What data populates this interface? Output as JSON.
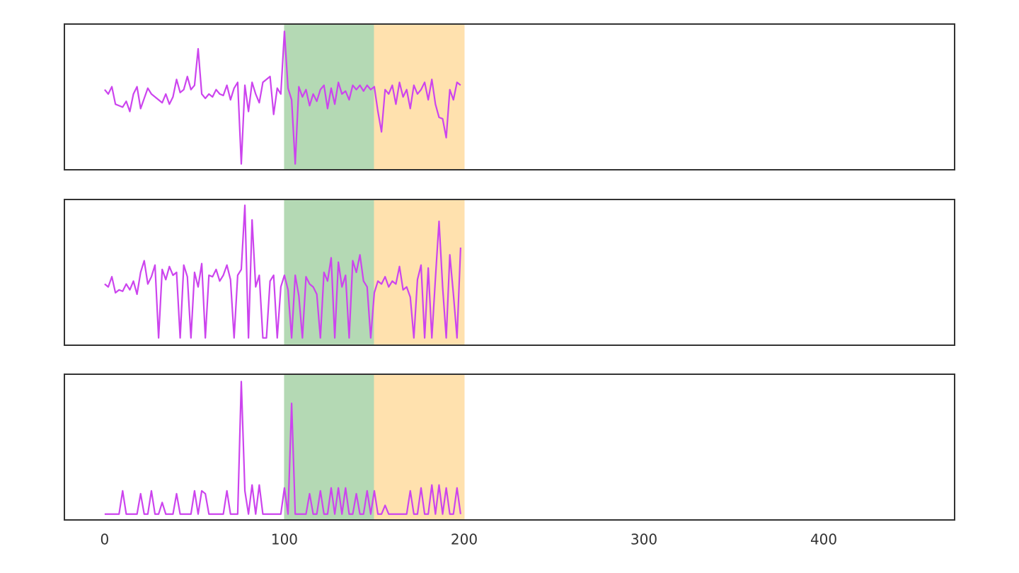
{
  "chart_data": [
    {
      "type": "line",
      "color": "#cc44ee",
      "xlim": [
        -22.4,
        472.8
      ],
      "ylim": [
        0,
        100
      ],
      "spans": [
        {
          "start": 100,
          "end": 150,
          "color": "#b4d9b4"
        },
        {
          "start": 150,
          "end": 200,
          "color": "#ffe1ae"
        }
      ],
      "x": [
        0,
        2,
        4,
        6,
        8,
        10,
        12,
        14,
        16,
        18,
        20,
        22,
        24,
        26,
        28,
        30,
        32,
        34,
        36,
        38,
        40,
        42,
        44,
        46,
        48,
        50,
        52,
        54,
        56,
        58,
        60,
        62,
        64,
        66,
        68,
        70,
        72,
        74,
        76,
        78,
        80,
        82,
        84,
        86,
        88,
        90,
        92,
        94,
        96,
        98,
        100,
        102,
        104,
        106,
        108,
        110,
        112,
        114,
        116,
        118,
        120,
        122,
        124,
        126,
        128,
        130,
        132,
        134,
        136,
        138,
        140,
        142,
        144,
        146,
        148,
        150,
        152,
        154,
        156,
        158,
        160,
        162,
        164,
        166,
        168,
        170,
        172,
        174,
        176,
        178,
        180,
        182,
        184,
        186,
        188,
        190,
        192,
        194,
        196,
        198
      ],
      "values": [
        55,
        52,
        57,
        45,
        44,
        43,
        47,
        40,
        52,
        57,
        42,
        49,
        56,
        52,
        50,
        48,
        46,
        52,
        45,
        50,
        62,
        53,
        55,
        64,
        55,
        58,
        83,
        52,
        49,
        52,
        50,
        55,
        52,
        51,
        58,
        48,
        56,
        60,
        4,
        58,
        40,
        60,
        52,
        46,
        60,
        62,
        64,
        38,
        56,
        52,
        95,
        56,
        48,
        4,
        57,
        50,
        55,
        44,
        52,
        47,
        55,
        58,
        42,
        56,
        45,
        60,
        52,
        54,
        48,
        58,
        55,
        58,
        54,
        58,
        55,
        57,
        40,
        26,
        55,
        52,
        58,
        45,
        60,
        50,
        55,
        42,
        58,
        52,
        55,
        60,
        48,
        62,
        45,
        36,
        35,
        22,
        55,
        48,
        60,
        58
      ]
    },
    {
      "type": "line",
      "color": "#cc44ee",
      "xlim": [
        -22.4,
        472.8
      ],
      "ylim": [
        0,
        100
      ],
      "spans": [
        {
          "start": 100,
          "end": 150,
          "color": "#b4d9b4"
        },
        {
          "start": 150,
          "end": 200,
          "color": "#ffe1ae"
        }
      ],
      "x": [
        0,
        2,
        4,
        6,
        8,
        10,
        12,
        14,
        16,
        18,
        20,
        22,
        24,
        26,
        28,
        30,
        32,
        34,
        36,
        38,
        40,
        42,
        44,
        46,
        48,
        50,
        52,
        54,
        56,
        58,
        60,
        62,
        64,
        66,
        68,
        70,
        72,
        74,
        76,
        78,
        80,
        82,
        84,
        86,
        88,
        90,
        92,
        94,
        96,
        98,
        100,
        102,
        104,
        106,
        108,
        110,
        112,
        114,
        116,
        118,
        120,
        122,
        124,
        126,
        128,
        130,
        132,
        134,
        136,
        138,
        140,
        142,
        144,
        146,
        148,
        150,
        152,
        154,
        156,
        158,
        160,
        162,
        164,
        166,
        168,
        170,
        172,
        174,
        176,
        178,
        180,
        182,
        184,
        186,
        188,
        190,
        192,
        194,
        196,
        198
      ],
      "values": [
        42,
        40,
        47,
        36,
        38,
        37,
        42,
        38,
        44,
        35,
        50,
        58,
        42,
        47,
        55,
        5,
        52,
        45,
        54,
        48,
        50,
        5,
        55,
        47,
        5,
        50,
        40,
        56,
        5,
        48,
        47,
        52,
        44,
        48,
        55,
        45,
        5,
        48,
        52,
        96,
        5,
        86,
        40,
        48,
        5,
        5,
        44,
        48,
        5,
        40,
        48,
        38,
        5,
        48,
        34,
        5,
        47,
        42,
        40,
        35,
        5,
        50,
        44,
        60,
        5,
        57,
        40,
        48,
        5,
        58,
        50,
        62,
        44,
        40,
        5,
        36,
        44,
        42,
        47,
        40,
        44,
        42,
        54,
        38,
        40,
        33,
        5,
        45,
        55,
        5,
        53,
        5,
        46,
        85,
        40,
        5,
        62,
        35,
        5,
        67
      ]
    },
    {
      "type": "line",
      "color": "#cc44ee",
      "xlim": [
        -22.4,
        472.8
      ],
      "ylim": [
        0,
        100
      ],
      "spans": [
        {
          "start": 100,
          "end": 150,
          "color": "#b4d9b4"
        },
        {
          "start": 150,
          "end": 200,
          "color": "#ffe1ae"
        }
      ],
      "xticks": [
        0,
        100,
        200,
        300,
        400
      ],
      "x": [
        0,
        2,
        4,
        6,
        8,
        10,
        12,
        14,
        16,
        18,
        20,
        22,
        24,
        26,
        28,
        30,
        32,
        34,
        36,
        38,
        40,
        42,
        44,
        46,
        48,
        50,
        52,
        54,
        56,
        58,
        60,
        62,
        64,
        66,
        68,
        70,
        72,
        74,
        76,
        78,
        80,
        82,
        84,
        86,
        88,
        90,
        92,
        94,
        96,
        98,
        100,
        102,
        104,
        106,
        108,
        110,
        112,
        114,
        116,
        118,
        120,
        122,
        124,
        126,
        128,
        130,
        132,
        134,
        136,
        138,
        140,
        142,
        144,
        146,
        148,
        150,
        152,
        154,
        156,
        158,
        160,
        162,
        164,
        166,
        168,
        170,
        172,
        174,
        176,
        178,
        180,
        182,
        184,
        186,
        188,
        190,
        192,
        194,
        196,
        198
      ],
      "values": [
        4,
        4,
        4,
        4,
        4,
        20,
        4,
        4,
        4,
        4,
        18,
        4,
        4,
        20,
        4,
        4,
        12,
        4,
        4,
        4,
        18,
        4,
        4,
        4,
        4,
        20,
        4,
        20,
        18,
        4,
        4,
        4,
        4,
        4,
        20,
        4,
        4,
        4,
        95,
        20,
        4,
        24,
        4,
        24,
        4,
        4,
        4,
        4,
        4,
        4,
        22,
        4,
        80,
        4,
        4,
        4,
        4,
        18,
        4,
        4,
        20,
        4,
        4,
        22,
        4,
        22,
        4,
        22,
        4,
        4,
        18,
        4,
        4,
        20,
        4,
        20,
        4,
        4,
        10,
        4,
        4,
        4,
        4,
        4,
        4,
        20,
        4,
        4,
        22,
        4,
        4,
        24,
        4,
        24,
        4,
        22,
        4,
        4,
        22,
        4
      ]
    }
  ]
}
